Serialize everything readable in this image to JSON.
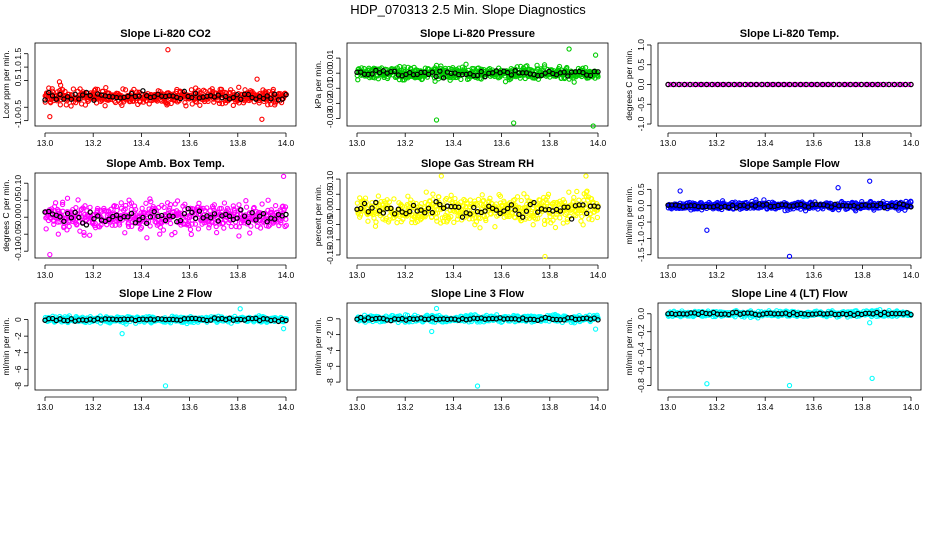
{
  "page": {
    "title": "HDP_070313  2.5 Min. Slope Diagnostics"
  },
  "colors": {
    "red": "#ff0000",
    "green": "#00cc00",
    "magenta": "#ff00ff",
    "yellow": "#ffff00",
    "blue": "#0000ff",
    "cyan": "#00ffff",
    "black": "#000000"
  },
  "chart_data": [
    {
      "id": "co2",
      "type": "scatter",
      "title": "Slope Li-820 CO2",
      "ylabel": "Lcor ppm per min.",
      "xlim": [
        13.0,
        14.0
      ],
      "xticks": [
        "13.0",
        "13.2",
        "13.4",
        "13.6",
        "13.8",
        "14.0"
      ],
      "ylim": [
        -1.2,
        1.9
      ],
      "yticks": [
        -1.0,
        -0.5,
        0.5,
        1.0,
        1.5
      ],
      "ytick_labels": [
        "-1.0",
        "-0.5",
        "0.5",
        "1.0",
        "1.5"
      ],
      "color": "#ff0000",
      "n_points": 520,
      "spread": 0.28,
      "center": -0.1,
      "black_points": 65,
      "outliers": [
        [
          13.51,
          1.65
        ],
        [
          13.06,
          0.45
        ],
        [
          13.9,
          -0.95
        ],
        [
          13.88,
          0.55
        ],
        [
          13.02,
          -0.85
        ]
      ]
    },
    {
      "id": "pressure",
      "type": "scatter",
      "title": "Slope Li-820 Pressure",
      "ylabel": "kPa per min.",
      "xlim": [
        13.0,
        14.0
      ],
      "xticks": [
        "13.0",
        "13.2",
        "13.4",
        "13.6",
        "13.8",
        "14.0"
      ],
      "ylim": [
        -0.035,
        0.02
      ],
      "yticks": [
        -0.03,
        -0.02,
        -0.01,
        0.0,
        0.01
      ],
      "ytick_labels": [
        "-0.03",
        "-0.02",
        "-0.01",
        "0.00",
        "0.01"
      ],
      "color": "#00cc00",
      "n_points": 520,
      "spread": 0.004,
      "center": 0.0,
      "black_points": 65,
      "outliers": [
        [
          13.33,
          -0.031
        ],
        [
          13.65,
          -0.033
        ],
        [
          13.98,
          -0.035
        ],
        [
          13.99,
          0.012
        ],
        [
          13.88,
          0.016
        ]
      ]
    },
    {
      "id": "temp",
      "type": "scatter",
      "title": "Slope Li-820 Temp.",
      "ylabel": "degrees C per min.",
      "xlim": [
        13.0,
        14.0
      ],
      "xticks": [
        "13.0",
        "13.2",
        "13.4",
        "13.6",
        "13.8",
        "14.0"
      ],
      "ylim": [
        -1.05,
        1.05
      ],
      "yticks": [
        -1.0,
        -0.5,
        0.0,
        0.5,
        1.0
      ],
      "ytick_labels": [
        "-1.0",
        "-0.5",
        "0.0",
        "0.5",
        "1.0"
      ],
      "color": "#ff00ff",
      "n_points": 90,
      "spread": 0.0,
      "center": 0.0,
      "black_points": 45,
      "outliers": []
    },
    {
      "id": "boxtemp",
      "type": "scatter",
      "title": "Slope Amb. Box Temp.",
      "ylabel": "degrees C per min.",
      "xlim": [
        13.0,
        14.0
      ],
      "xticks": [
        "13.0",
        "13.2",
        "13.4",
        "13.6",
        "13.8",
        "14.0"
      ],
      "ylim": [
        -0.12,
        0.13
      ],
      "yticks": [
        -0.1,
        -0.05,
        0.0,
        0.05,
        0.1
      ],
      "ytick_labels": [
        "-0.10",
        "-0.05",
        "0.00",
        "0.05",
        "0.10"
      ],
      "color": "#ff00ff",
      "n_points": 520,
      "spread": 0.04,
      "center": 0.0,
      "black_points": 65,
      "outliers": [
        [
          13.99,
          0.12
        ],
        [
          13.02,
          -0.11
        ]
      ]
    },
    {
      "id": "rh",
      "type": "scatter",
      "title": "Slope Gas Stream RH",
      "ylabel": "percent per min.",
      "xlim": [
        13.0,
        14.0
      ],
      "xticks": [
        "13.0",
        "13.2",
        "13.4",
        "13.6",
        "13.8",
        "14.0"
      ],
      "ylim": [
        -0.16,
        0.12
      ],
      "yticks": [
        -0.15,
        -0.1,
        -0.05,
        0.0,
        0.05,
        0.1
      ],
      "ytick_labels": [
        "-0.15",
        "-0.10",
        "-0.05",
        "0.00",
        "0.05",
        "0.10"
      ],
      "color": "#ffff00",
      "n_points": 520,
      "spread": 0.045,
      "center": 0.0,
      "black_points": 65,
      "outliers": [
        [
          13.78,
          -0.155
        ],
        [
          13.35,
          0.11
        ],
        [
          13.95,
          0.11
        ]
      ]
    },
    {
      "id": "sampleflow",
      "type": "scatter",
      "title": "Slope Sample Flow",
      "ylabel": "ml/min per min.",
      "xlim": [
        13.0,
        14.0
      ],
      "xticks": [
        "13.0",
        "13.2",
        "13.4",
        "13.6",
        "13.8",
        "14.0"
      ],
      "ylim": [
        -1.6,
        1.0
      ],
      "yticks": [
        -1.5,
        -1.0,
        -0.5,
        0.0,
        0.5
      ],
      "ytick_labels": [
        "-1.5",
        "-1.0",
        "-0.5",
        "0.0",
        "0.5"
      ],
      "color": "#0000ff",
      "n_points": 520,
      "spread": 0.12,
      "center": 0.0,
      "black_points": 65,
      "outliers": [
        [
          13.5,
          -1.55
        ],
        [
          13.83,
          0.75
        ],
        [
          13.16,
          -0.75
        ],
        [
          13.7,
          0.55
        ],
        [
          13.05,
          0.45
        ]
      ]
    },
    {
      "id": "line2",
      "type": "scatter",
      "title": "Slope Line 2 Flow",
      "ylabel": "ml/min per min.",
      "xlim": [
        13.0,
        14.0
      ],
      "xticks": [
        "13.0",
        "13.2",
        "13.4",
        "13.6",
        "13.8",
        "14.0"
      ],
      "ylim": [
        -8.5,
        2.0
      ],
      "yticks": [
        -8,
        -6,
        -4,
        -2,
        0
      ],
      "ytick_labels": [
        "-8",
        "-6",
        "-4",
        "-2",
        "0"
      ],
      "color": "#00ffff",
      "n_points": 520,
      "spread": 0.35,
      "center": 0.0,
      "black_points": 65,
      "outliers": [
        [
          13.5,
          -8.0
        ],
        [
          13.32,
          -1.7
        ],
        [
          13.99,
          -1.1
        ],
        [
          13.81,
          1.3
        ]
      ]
    },
    {
      "id": "line3",
      "type": "scatter",
      "title": "Slope Line 3 Flow",
      "ylabel": "ml/min per min.",
      "xlim": [
        13.0,
        14.0
      ],
      "xticks": [
        "13.0",
        "13.2",
        "13.4",
        "13.6",
        "13.8",
        "14.0"
      ],
      "ylim": [
        -9.0,
        2.0
      ],
      "yticks": [
        -8,
        -6,
        -4,
        -2,
        0
      ],
      "ytick_labels": [
        "-8",
        "-6",
        "-4",
        "-2",
        "0"
      ],
      "color": "#00ffff",
      "n_points": 520,
      "spread": 0.4,
      "center": 0.0,
      "black_points": 65,
      "outliers": [
        [
          13.5,
          -8.5
        ],
        [
          13.33,
          1.3
        ],
        [
          13.31,
          -1.6
        ],
        [
          13.99,
          -1.3
        ]
      ]
    },
    {
      "id": "line4",
      "type": "scatter",
      "title": "Slope Line 4 (LT) Flow",
      "ylabel": "ml/min per min.",
      "xlim": [
        13.0,
        14.0
      ],
      "xticks": [
        "13.0",
        "13.2",
        "13.4",
        "13.6",
        "13.8",
        "14.0"
      ],
      "ylim": [
        -0.85,
        0.12
      ],
      "yticks": [
        -0.8,
        -0.6,
        -0.4,
        -0.2,
        0.0
      ],
      "ytick_labels": [
        "-0.8",
        "-0.6",
        "-0.4",
        "-0.2",
        "0.0"
      ],
      "color": "#00ffff",
      "n_points": 520,
      "spread": 0.03,
      "center": 0.0,
      "black_points": 65,
      "outliers": [
        [
          13.16,
          -0.78
        ],
        [
          13.5,
          -0.8
        ],
        [
          13.84,
          -0.72
        ],
        [
          13.83,
          -0.1
        ]
      ]
    }
  ]
}
